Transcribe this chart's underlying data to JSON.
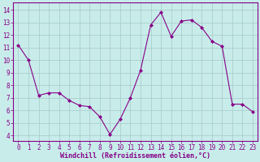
{
  "x": [
    0,
    1,
    2,
    3,
    4,
    5,
    6,
    7,
    8,
    9,
    10,
    11,
    12,
    13,
    14,
    15,
    16,
    17,
    18,
    19,
    20,
    21,
    22,
    23
  ],
  "y": [
    11.2,
    10.0,
    7.2,
    7.4,
    7.4,
    6.8,
    6.4,
    6.3,
    5.5,
    4.1,
    5.3,
    7.0,
    9.2,
    12.8,
    13.8,
    11.9,
    13.1,
    13.2,
    12.6,
    11.5,
    11.1,
    6.5,
    6.5,
    5.9
  ],
  "line_color": "#880088",
  "marker": "D",
  "marker_size": 2,
  "bg_color": "#c8ecea",
  "grid_color": "#aacfcd",
  "xlabel": "Windchill (Refroidissement éolien,°C)",
  "xlabel_color": "#880088",
  "ylabel_ticks": [
    4,
    5,
    6,
    7,
    8,
    9,
    10,
    11,
    12,
    13,
    14
  ],
  "xlim": [
    -0.5,
    23.5
  ],
  "ylim": [
    3.6,
    14.6
  ],
  "tick_label_color": "#880088",
  "axis_color": "#880088",
  "font_family": "monospace",
  "tick_fontsize": 5.5,
  "xlabel_fontsize": 6.0,
  "linewidth": 0.8
}
